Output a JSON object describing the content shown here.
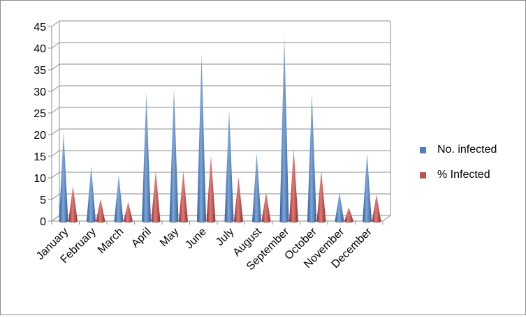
{
  "chart_data": {
    "type": "bar",
    "title": "",
    "xlabel": "",
    "ylabel": "",
    "ylim": [
      0,
      45
    ],
    "yticks": [
      0,
      5,
      10,
      15,
      20,
      25,
      30,
      35,
      40,
      45
    ],
    "grid": true,
    "legend_position": "right",
    "categories": [
      "January",
      "February",
      "March",
      "April",
      "May",
      "June",
      "July",
      "August",
      "September",
      "October",
      "November",
      "December"
    ],
    "series": [
      {
        "name": "No. infected",
        "color": "#4f81bd",
        "values": [
          20,
          12,
          10,
          29,
          30,
          38,
          25,
          15,
          42,
          29,
          6,
          15
        ]
      },
      {
        "name": "% Infected",
        "color": "#c0504d",
        "values": [
          7.5,
          4.5,
          3.8,
          11,
          11,
          14.5,
          9.5,
          6,
          16,
          11,
          2.5,
          5.5
        ]
      }
    ]
  }
}
